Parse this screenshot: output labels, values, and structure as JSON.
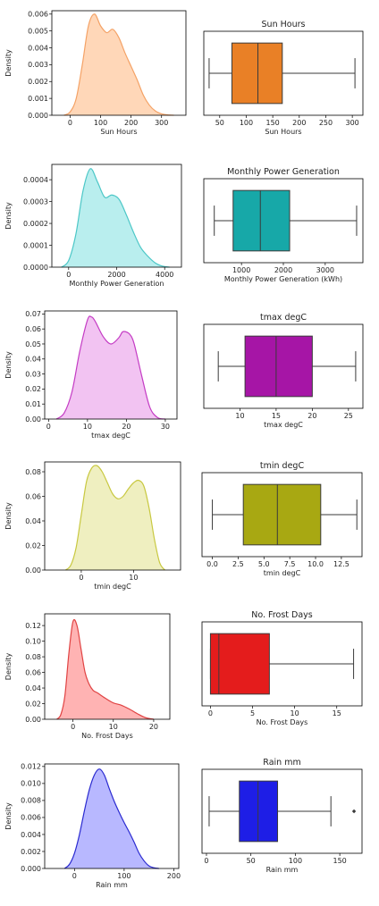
{
  "chart_data": [
    {
      "type": "kde",
      "xlabel": "Sun Hours",
      "ylabel": "Density",
      "xlim": [
        -60,
        380
      ],
      "ylim": [
        0,
        0.0062
      ],
      "xticks": [
        0,
        100,
        200,
        300
      ],
      "yticks": [
        0.0,
        0.001,
        0.002,
        0.003,
        0.004,
        0.005,
        0.006
      ],
      "ytick_labels": [
        "0.000",
        "0.001",
        "0.002",
        "0.003",
        "0.004",
        "0.005",
        "0.006"
      ],
      "x": [
        -20,
        0,
        20,
        40,
        60,
        80,
        100,
        120,
        140,
        160,
        180,
        200,
        220,
        240,
        260,
        280,
        300,
        320,
        340
      ],
      "y": [
        0,
        0.0002,
        0.001,
        0.003,
        0.0053,
        0.006,
        0.0053,
        0.0049,
        0.0051,
        0.0046,
        0.0037,
        0.0029,
        0.0021,
        0.0012,
        0.0006,
        0.00025,
        8e-05,
        2e-05,
        0
      ],
      "fill": "#ffd7b8",
      "line": "#f4a266"
    },
    {
      "type": "box",
      "title": "Sun Hours",
      "xlabel": "Sun Hours",
      "xlim": [
        20,
        320
      ],
      "xticks": [
        50,
        100,
        150,
        200,
        250,
        300
      ],
      "whisker_low": 30,
      "q1": 73,
      "median": 122,
      "q3": 168,
      "whisker_high": 305,
      "outliers": [],
      "color": "#e98026"
    },
    {
      "type": "kde",
      "xlabel": "Monthly Power Generation",
      "ylabel": "Density",
      "xlim": [
        -700,
        4700
      ],
      "ylim": [
        0,
        0.00047
      ],
      "xticks": [
        0,
        2000,
        4000
      ],
      "yticks": [
        0,
        0.0001,
        0.0002,
        0.0003,
        0.0004
      ],
      "ytick_labels": [
        "0.0000",
        "0.0001",
        "0.0002",
        "0.0003",
        "0.0004"
      ],
      "x": [
        -300,
        0,
        300,
        600,
        900,
        1200,
        1500,
        1800,
        2100,
        2400,
        2700,
        3000,
        3300,
        3600,
        3900,
        4200
      ],
      "y": [
        0,
        3e-05,
        0.00015,
        0.00035,
        0.00045,
        0.00039,
        0.00032,
        0.00033,
        0.00031,
        0.00024,
        0.00016,
        9e-05,
        5e-05,
        2e-05,
        5e-06,
        0
      ],
      "fill": "#b9eeee",
      "line": "#4cc7c7"
    },
    {
      "type": "box",
      "title": "Monthly Power Generation",
      "xlabel": "Monthly Power Generation (kWh)",
      "xlim": [
        100,
        3900
      ],
      "xticks": [
        1000,
        2000,
        3000
      ],
      "whisker_low": 350,
      "q1": 800,
      "median": 1450,
      "q3": 2150,
      "whisker_high": 3750,
      "outliers": [],
      "color": "#17a8a8"
    },
    {
      "type": "kde",
      "xlabel": "tmax degC",
      "ylabel": "Density",
      "xlim": [
        -1,
        33
      ],
      "ylim": [
        0,
        0.072
      ],
      "xticks": [
        0,
        10,
        20,
        30
      ],
      "yticks": [
        0,
        0.01,
        0.02,
        0.03,
        0.04,
        0.05,
        0.06,
        0.07
      ],
      "ytick_labels": [
        "0.00",
        "0.01",
        "0.02",
        "0.03",
        "0.04",
        "0.05",
        "0.06",
        "0.07"
      ],
      "x": [
        2,
        4,
        6,
        8,
        10,
        11,
        12,
        14,
        16,
        18,
        19,
        20,
        21,
        22,
        24,
        26,
        28,
        30
      ],
      "y": [
        0,
        0.004,
        0.018,
        0.045,
        0.066,
        0.068,
        0.065,
        0.055,
        0.05,
        0.054,
        0.058,
        0.058,
        0.056,
        0.05,
        0.028,
        0.008,
        0.001,
        0
      ],
      "fill": "#f2c3f2",
      "line": "#c43cc4"
    },
    {
      "type": "box",
      "title": "tmax degC",
      "xlabel": "tmax degC",
      "xlim": [
        5,
        27
      ],
      "xticks": [
        10,
        15,
        20,
        25
      ],
      "whisker_low": 7,
      "q1": 10.7,
      "median": 15,
      "q3": 20,
      "whisker_high": 26,
      "outliers": [],
      "color": "#a615a6"
    },
    {
      "type": "kde",
      "xlabel": "tmin degC",
      "ylabel": "Density",
      "xlim": [
        -7,
        19
      ],
      "ylim": [
        0,
        0.088
      ],
      "xticks": [
        0,
        10
      ],
      "yticks": [
        0,
        0.02,
        0.04,
        0.06,
        0.08
      ],
      "ytick_labels": [
        "0.00",
        "0.02",
        "0.04",
        "0.06",
        "0.08"
      ],
      "x": [
        -3,
        -2,
        -1,
        0,
        1,
        2,
        3,
        4,
        5,
        6,
        7,
        8,
        9,
        10,
        11,
        12,
        13,
        14,
        15,
        16
      ],
      "y": [
        0,
        0.004,
        0.018,
        0.045,
        0.072,
        0.083,
        0.085,
        0.08,
        0.071,
        0.062,
        0.058,
        0.06,
        0.066,
        0.071,
        0.073,
        0.068,
        0.05,
        0.025,
        0.006,
        0
      ],
      "fill": "#efefc0",
      "line": "#c8c840"
    },
    {
      "type": "box",
      "title": "tmin degC",
      "xlabel": "tmin degC",
      "xlim": [
        -1,
        14.5
      ],
      "xticks": [
        0,
        2.5,
        5,
        7.5,
        10,
        12.5
      ],
      "xtick_labels": [
        "0.0",
        "2.5",
        "5.0",
        "7.5",
        "10.0",
        "12.5"
      ],
      "whisker_low": 0,
      "q1": 3,
      "median": 6.3,
      "q3": 10.5,
      "whisker_high": 14,
      "outliers": [],
      "color": "#a8a812"
    },
    {
      "type": "kde",
      "xlabel": "No. Frost Days",
      "ylabel": "Density",
      "xlim": [
        -7,
        24
      ],
      "ylim": [
        0,
        0.135
      ],
      "xticks": [
        0,
        10,
        20
      ],
      "yticks": [
        0,
        0.02,
        0.04,
        0.06,
        0.08,
        0.1,
        0.12
      ],
      "ytick_labels": [
        "0.00",
        "0.02",
        "0.04",
        "0.06",
        "0.08",
        "0.10",
        "0.12"
      ],
      "x": [
        -4,
        -3,
        -2,
        -1,
        0,
        1,
        2,
        3,
        4,
        5,
        6,
        8,
        10,
        12,
        14,
        16,
        18,
        20
      ],
      "y": [
        0,
        0.006,
        0.03,
        0.085,
        0.125,
        0.12,
        0.09,
        0.06,
        0.045,
        0.037,
        0.034,
        0.027,
        0.021,
        0.018,
        0.013,
        0.007,
        0.002,
        0
      ],
      "fill": "#ffb3b3",
      "line": "#e04343"
    },
    {
      "type": "box",
      "title": "No. Frost Days",
      "xlabel": "No. Frost Days",
      "xlim": [
        -1,
        18
      ],
      "xticks": [
        0,
        5,
        10,
        15
      ],
      "whisker_low": 0,
      "q1": 0,
      "median": 1,
      "q3": 7,
      "whisker_high": 17,
      "outliers": [],
      "color": "#e41c1c"
    },
    {
      "type": "kde",
      "xlabel": "Rain mm",
      "ylabel": "Density",
      "xlim": [
        -60,
        210
      ],
      "ylim": [
        0,
        0.0123
      ],
      "xticks": [
        0,
        100,
        200
      ],
      "yticks": [
        0,
        0.002,
        0.004,
        0.006,
        0.008,
        0.01,
        0.012
      ],
      "ytick_labels": [
        "0.000",
        "0.002",
        "0.004",
        "0.006",
        "0.008",
        "0.010",
        "0.012"
      ],
      "x": [
        -20,
        -10,
        0,
        10,
        20,
        30,
        40,
        50,
        60,
        70,
        80,
        90,
        100,
        110,
        120,
        130,
        140,
        150,
        160,
        170
      ],
      "y": [
        0,
        0.0005,
        0.0018,
        0.004,
        0.0068,
        0.0093,
        0.011,
        0.0117,
        0.011,
        0.0094,
        0.0079,
        0.0066,
        0.0054,
        0.0043,
        0.0031,
        0.0018,
        0.0009,
        0.0003,
        8e-05,
        0
      ],
      "fill": "#b8b8ff",
      "line": "#2a2ad0"
    },
    {
      "type": "box",
      "title": "Rain mm",
      "xlabel": "Rain mm",
      "xlim": [
        -5,
        175
      ],
      "xticks": [
        0,
        50,
        100,
        150
      ],
      "whisker_low": 3,
      "q1": 37,
      "median": 58,
      "q3": 80,
      "whisker_high": 140,
      "outliers": [
        166
      ],
      "color": "#1e1ee6"
    }
  ]
}
